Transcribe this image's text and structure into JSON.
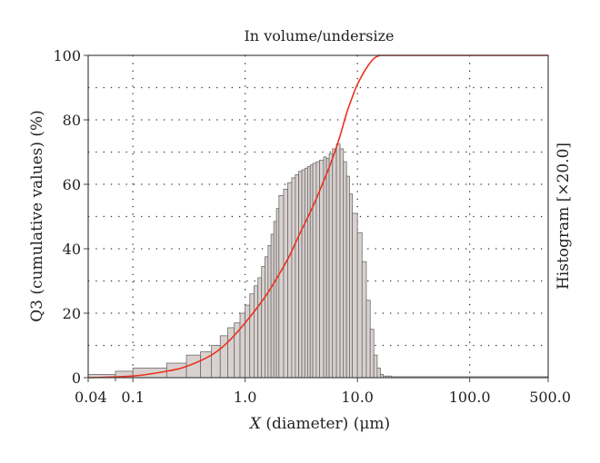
{
  "chart_data": {
    "type": "bar",
    "title": "In volume/undersize",
    "xlabel_var": "X",
    "xlabel_rest": " (diameter) (μm)",
    "ylabel": "Q3 (cumulative values) (%)",
    "y2label": "Histogram [×20.0]",
    "x_scale": "log",
    "xlim": [
      0.04,
      500
    ],
    "ylim": [
      0,
      100
    ],
    "x_tick_labels": [
      {
        "value": 0.04,
        "label": "0.04"
      },
      {
        "value": 0.1,
        "label": "0.1"
      },
      {
        "value": 1,
        "label": "1.0"
      },
      {
        "value": 10,
        "label": "10.0"
      },
      {
        "value": 100,
        "label": "100.0"
      },
      {
        "value": 500,
        "label": "500.0"
      }
    ],
    "y_ticks": [
      0,
      20,
      40,
      60,
      80,
      100
    ],
    "grid": "dotted",
    "colors": {
      "histogram_fill": "#d9d1cf",
      "histogram_edge": "#6b6b6b",
      "cumulative_line": "#e8321e"
    },
    "histogram": {
      "name": "Histogram",
      "edges": [
        0.04,
        0.07,
        0.1,
        0.2,
        0.3,
        0.4,
        0.5,
        0.6,
        0.7,
        0.8,
        0.9,
        1.0,
        1.1,
        1.2,
        1.3,
        1.4,
        1.5,
        1.6,
        1.7,
        1.8,
        1.9,
        2.0,
        2.2,
        2.4,
        2.6,
        2.8,
        3.0,
        3.2,
        3.4,
        3.6,
        3.8,
        4.0,
        4.3,
        4.6,
        5.0,
        5.3,
        5.6,
        6.0,
        6.5,
        7.0,
        7.5,
        8.0,
        8.5,
        9.0,
        10.0,
        11.0,
        12.0,
        13.0,
        14.0,
        15.0,
        16.0,
        17.0,
        18.0,
        19.0,
        20.0,
        500.0
      ],
      "heights": [
        1,
        2,
        3,
        4.5,
        7,
        8,
        10,
        13,
        15.5,
        17,
        20,
        22.5,
        26,
        28.5,
        31,
        34.5,
        37.5,
        41,
        44.5,
        48.5,
        52.5,
        56.5,
        58.5,
        60.5,
        62,
        63,
        64,
        64.5,
        65,
        65.5,
        66,
        66.5,
        67,
        67.5,
        68.5,
        68,
        69.5,
        71,
        72.5,
        71,
        67,
        62.5,
        57,
        51,
        45,
        36,
        24,
        15,
        7,
        3,
        1,
        0.5,
        0.5,
        0.5,
        0.3
      ]
    },
    "cumulative": {
      "name": "Q3",
      "x": [
        0.04,
        0.1,
        0.2,
        0.3,
        0.5,
        0.7,
        1.0,
        1.5,
        2.0,
        2.5,
        3.0,
        4.0,
        5.0,
        6.0,
        7.0,
        8.0,
        9.0,
        10.0,
        12.0,
        14.0,
        16.0,
        18.0,
        20.0,
        500.0
      ],
      "y": [
        0,
        0.5,
        2,
        3.5,
        7,
        11,
        17,
        25,
        32,
        38,
        44,
        53,
        61,
        68,
        75,
        82,
        87,
        91,
        96,
        99,
        100,
        100,
        100,
        100
      ]
    }
  }
}
